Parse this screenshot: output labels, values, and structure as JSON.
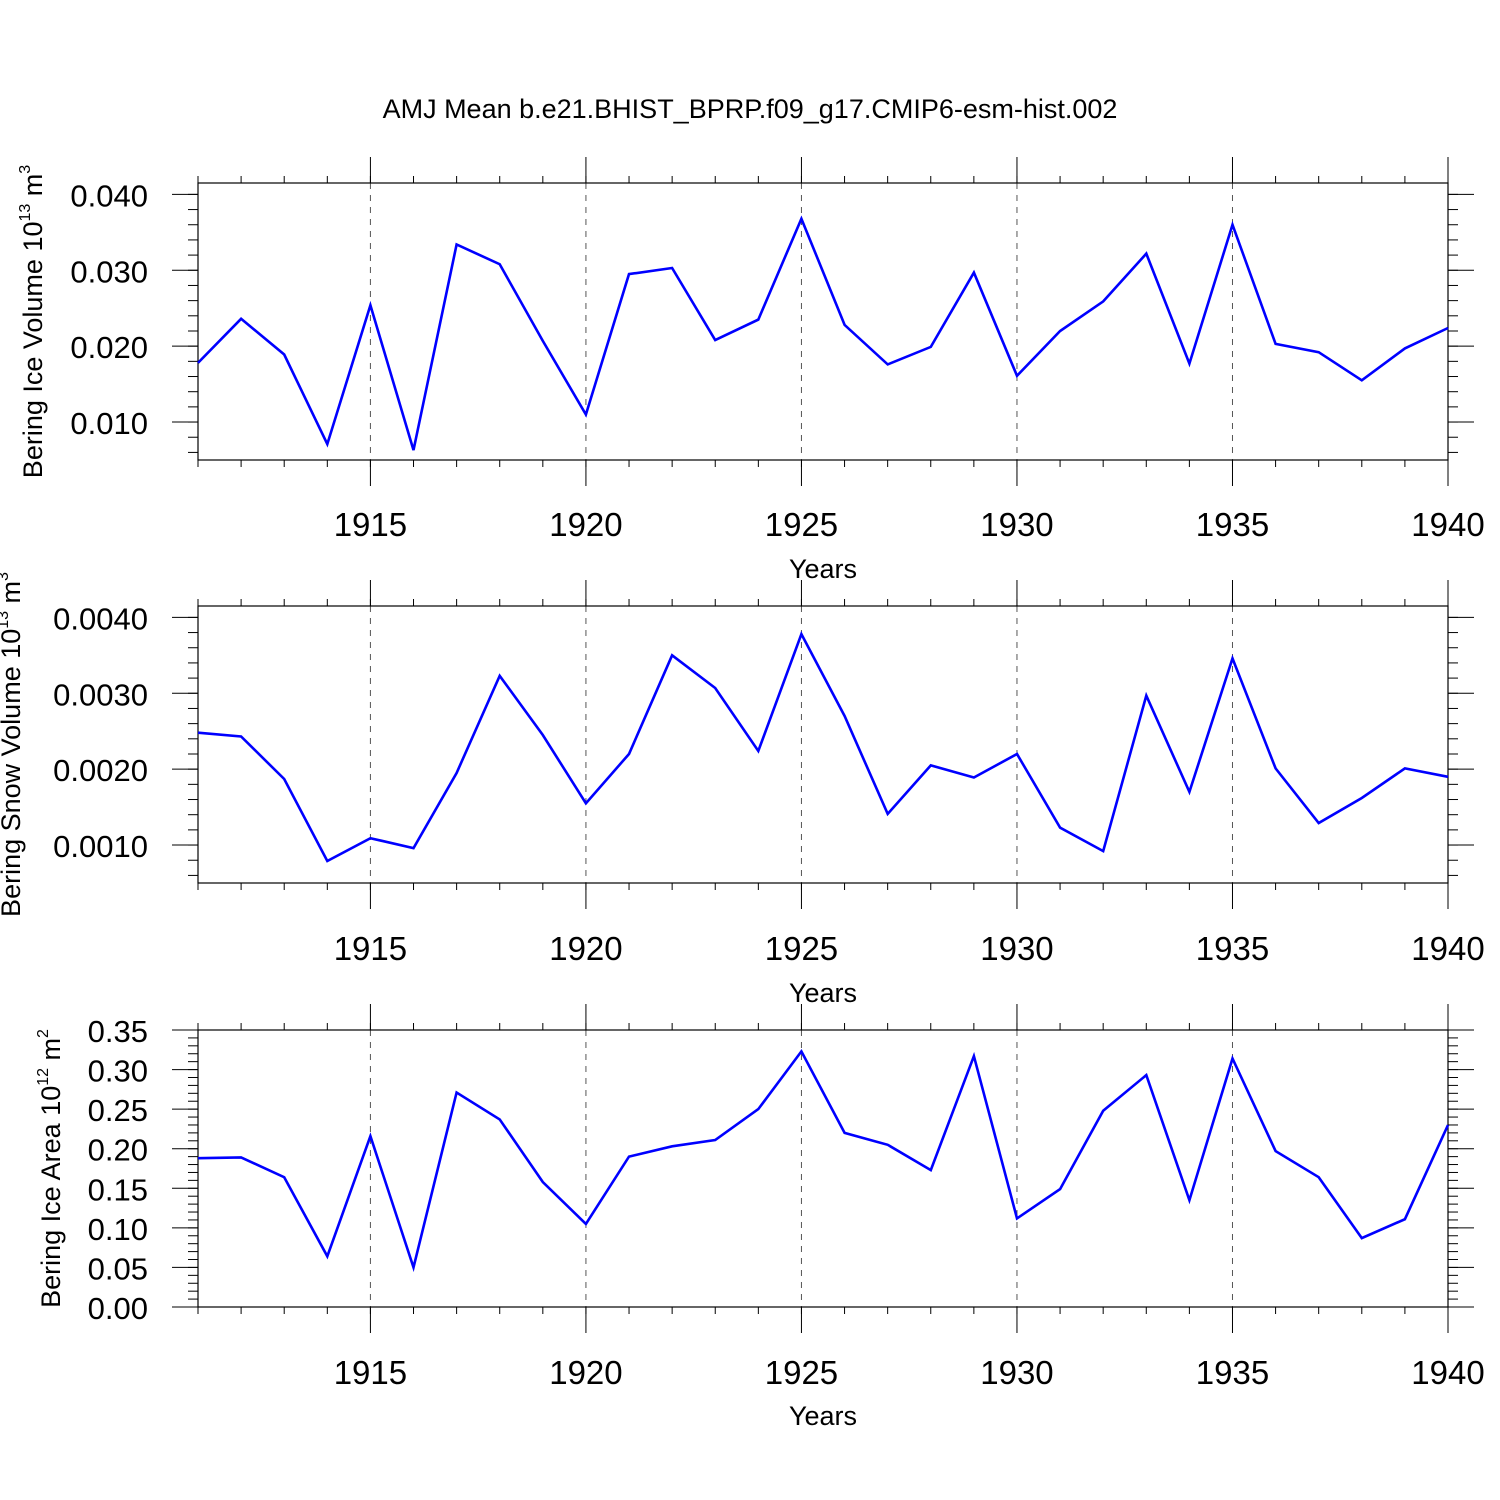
{
  "title": "AMJ Mean b.e21.BHIST_BPRP.f09_g17.CMIP6-esm-hist.002",
  "colors": {
    "line": "#0000ff",
    "axis": "#000000",
    "grid": "#555555"
  },
  "chart_data": [
    {
      "type": "line",
      "ylabel": {
        "main": "Bering Ice Volume 10",
        "exp": "13",
        "unit": " m",
        "unit_exp": "3"
      },
      "xlabel": "Years",
      "xlim": [
        1911,
        1940
      ],
      "ylim": [
        0.005,
        0.0415
      ],
      "xticks": [
        1915,
        1920,
        1925,
        1930,
        1935,
        1940
      ],
      "xtick_labels": [
        "1915",
        "1920",
        "1925",
        "1930",
        "1935",
        "1940"
      ],
      "yticks": [
        0.01,
        0.02,
        0.03,
        0.04
      ],
      "ytick_labels": [
        "0.010",
        "0.020",
        "0.030",
        "0.040"
      ],
      "yminor_step": 0.002,
      "grid": "dashed vertical at major x ticks",
      "x": [
        1911,
        1912,
        1913,
        1914,
        1915,
        1916,
        1917,
        1918,
        1919,
        1920,
        1921,
        1922,
        1923,
        1924,
        1925,
        1926,
        1927,
        1928,
        1929,
        1930,
        1931,
        1932,
        1933,
        1934,
        1935,
        1936,
        1937,
        1938,
        1939,
        1940
      ],
      "series": [
        {
          "name": "Bering Ice Volume",
          "values": [
            0.0178,
            0.0236,
            0.0189,
            0.0071,
            0.0254,
            0.0063,
            0.0334,
            0.0308,
            0.0207,
            0.011,
            0.0295,
            0.0303,
            0.0208,
            0.0235,
            0.0368,
            0.0228,
            0.0176,
            0.0199,
            0.0297,
            0.0161,
            0.022,
            0.0259,
            0.0322,
            0.0177,
            0.036,
            0.0203,
            0.0192,
            0.0155,
            0.0197,
            0.0224
          ]
        }
      ]
    },
    {
      "type": "line",
      "ylabel": {
        "main": "Bering Snow Volume 10",
        "exp": "13",
        "unit": " m",
        "unit_exp": "3"
      },
      "xlabel": "Years",
      "xlim": [
        1911,
        1940
      ],
      "ylim": [
        0.0005,
        0.00415
      ],
      "xticks": [
        1915,
        1920,
        1925,
        1930,
        1935,
        1940
      ],
      "xtick_labels": [
        "1915",
        "1920",
        "1925",
        "1930",
        "1935",
        "1940"
      ],
      "yticks": [
        0.001,
        0.002,
        0.003,
        0.004
      ],
      "ytick_labels": [
        "0.0010",
        "0.0020",
        "0.0030",
        "0.0040"
      ],
      "yminor_step": 0.0002,
      "grid": "dashed vertical at major x ticks",
      "x": [
        1911,
        1912,
        1913,
        1914,
        1915,
        1916,
        1917,
        1918,
        1919,
        1920,
        1921,
        1922,
        1923,
        1924,
        1925,
        1926,
        1927,
        1928,
        1929,
        1930,
        1931,
        1932,
        1933,
        1934,
        1935,
        1936,
        1937,
        1938,
        1939,
        1940
      ],
      "series": [
        {
          "name": "Bering Snow Volume",
          "values": [
            0.00248,
            0.00243,
            0.00187,
            0.00079,
            0.00109,
            0.00096,
            0.00195,
            0.00323,
            0.00245,
            0.00155,
            0.0022,
            0.0035,
            0.00307,
            0.00224,
            0.00378,
            0.0027,
            0.00141,
            0.00205,
            0.00189,
            0.0022,
            0.00123,
            0.00092,
            0.00297,
            0.0017,
            0.00346,
            0.00201,
            0.00129,
            0.00162,
            0.00201,
            0.0019
          ]
        }
      ]
    },
    {
      "type": "line",
      "ylabel": {
        "main": "Bering Ice Area 10",
        "exp": "12",
        "unit": " m",
        "unit_exp": "2"
      },
      "xlabel": "Years",
      "xlim": [
        1911,
        1940
      ],
      "ylim": [
        0,
        0.35
      ],
      "xticks": [
        1915,
        1920,
        1925,
        1930,
        1935,
        1940
      ],
      "xtick_labels": [
        "1915",
        "1920",
        "1925",
        "1930",
        "1935",
        "1940"
      ],
      "yticks": [
        0,
        0.05,
        0.1,
        0.15,
        0.2,
        0.25,
        0.3,
        0.35
      ],
      "ytick_labels": [
        "0.00",
        "0.05",
        "0.10",
        "0.15",
        "0.20",
        "0.25",
        "0.30",
        "0.35"
      ],
      "yminor_step": 0.01,
      "grid": "dashed vertical at major x ticks",
      "x": [
        1911,
        1912,
        1913,
        1914,
        1915,
        1916,
        1917,
        1918,
        1919,
        1920,
        1921,
        1922,
        1923,
        1924,
        1925,
        1926,
        1927,
        1928,
        1929,
        1930,
        1931,
        1932,
        1933,
        1934,
        1935,
        1936,
        1937,
        1938,
        1939,
        1940
      ],
      "series": [
        {
          "name": "Bering Ice Area",
          "values": [
            0.188,
            0.189,
            0.164,
            0.064,
            0.216,
            0.05,
            0.271,
            0.237,
            0.158,
            0.105,
            0.19,
            0.203,
            0.211,
            0.25,
            0.323,
            0.22,
            0.205,
            0.173,
            0.317,
            0.112,
            0.149,
            0.248,
            0.293,
            0.135,
            0.314,
            0.197,
            0.164,
            0.087,
            0.111,
            0.23
          ]
        }
      ]
    }
  ]
}
